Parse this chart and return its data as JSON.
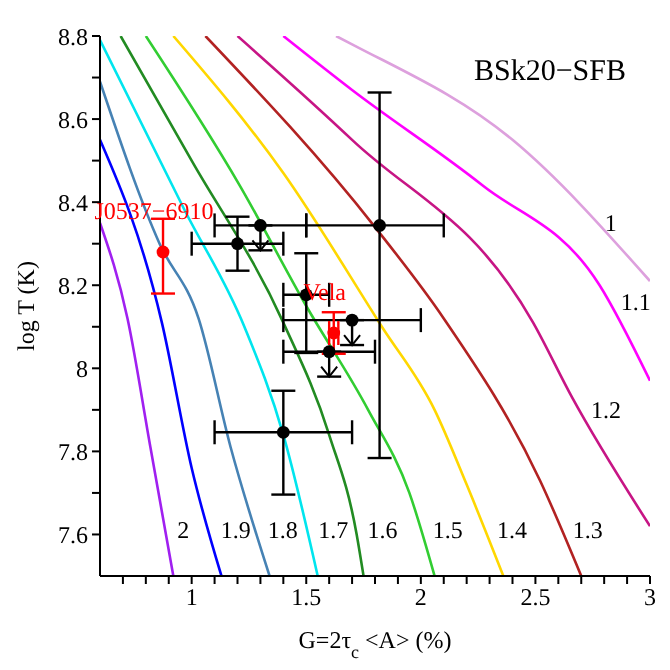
{
  "chart_data": {
    "type": "line",
    "title": "BSk20−SFB",
    "xlabel": "G=2τ$_{c}$<A> (%)",
    "ylabel": "log T (K)",
    "xlim": [
      0.6,
      3
    ],
    "ylim": [
      7.5,
      8.8
    ],
    "xticks": [
      {
        "value": 0.7,
        "label": null
      },
      {
        "value": 0.8,
        "label": null
      },
      {
        "value": 0.9,
        "label": null
      },
      1,
      {
        "value": 1.1,
        "label": null
      },
      {
        "value": 1.2,
        "label": null
      },
      {
        "value": 1.3,
        "label": null
      },
      {
        "value": 1.4,
        "label": null
      },
      1.5,
      {
        "value": 1.6,
        "label": null
      },
      {
        "value": 1.7,
        "label": null
      },
      {
        "value": 1.8,
        "label": null
      },
      {
        "value": 1.9,
        "label": null
      },
      2,
      {
        "value": 2.1,
        "label": null
      },
      {
        "value": 2.2,
        "label": null
      },
      {
        "value": 2.3,
        "label": null
      },
      {
        "value": 2.4,
        "label": null
      },
      2.5,
      {
        "value": 2.6,
        "label": null
      },
      {
        "value": 2.7,
        "label": null
      },
      {
        "value": 2.8,
        "label": null
      },
      {
        "value": 2.9,
        "label": null
      },
      3
    ],
    "yticks": [
      7.6,
      {
        "value": 7.7,
        "label": null
      },
      7.8,
      {
        "value": 7.9,
        "label": null
      },
      8,
      {
        "value": 8.1,
        "label": null
      },
      8.2,
      {
        "value": 8.3,
        "label": null
      },
      8.4,
      {
        "value": 8.5,
        "label": null
      },
      8.6,
      {
        "value": 8.7,
        "label": null
      },
      8.8
    ],
    "grid": false,
    "legend": false,
    "marker": "none",
    "line_style": "solid",
    "series": [
      {
        "color": "#a020f0",
        "x": [
          0.6,
          0.72,
          0.82,
          0.92
        ],
        "values": [
          8.35,
          8.12,
          7.81,
          7.5
        ]
      },
      {
        "color": "#0000ff",
        "x": [
          0.6,
          0.87,
          1.0,
          1.13
        ],
        "values": [
          8.55,
          8.11,
          7.76,
          7.5
        ]
      },
      {
        "color": "#4682b4",
        "x": [
          0.6,
          0.86,
          1.03,
          1.17,
          1.34
        ],
        "values": [
          8.69,
          8.3,
          8.12,
          7.81,
          7.5
        ]
      },
      {
        "color": "#00e5ee",
        "x": [
          0.6,
          0.97,
          1.23,
          1.4,
          1.55
        ],
        "values": [
          8.79,
          8.38,
          8.1,
          7.84,
          7.5
        ]
      },
      {
        "color": "#228b22",
        "x": [
          0.69,
          1.0,
          1.4,
          1.6,
          1.72,
          1.75
        ],
        "values": [
          8.8,
          8.5,
          8.11,
          7.84,
          7.6,
          7.5
        ]
      },
      {
        "color": "#32cd32",
        "x": [
          0.8,
          1.21,
          1.5,
          1.77,
          1.95,
          2.06
        ],
        "values": [
          8.8,
          8.44,
          8.15,
          7.9,
          7.7,
          7.5
        ]
      },
      {
        "color": "#ffd700",
        "x": [
          0.92,
          1.4,
          1.83,
          2.06,
          2.2,
          2.36
        ],
        "values": [
          8.8,
          8.47,
          8.1,
          7.9,
          7.72,
          7.5
        ]
      },
      {
        "color": "#b22222",
        "x": [
          1.06,
          1.8,
          2.1,
          2.52,
          2.7
        ],
        "values": [
          8.8,
          8.34,
          8.12,
          7.73,
          7.5
        ]
      },
      {
        "color": "#c71585",
        "x": [
          1.2,
          1.7,
          2.49,
          2.66,
          3.0
        ],
        "values": [
          8.8,
          8.55,
          8.11,
          7.93,
          7.62
        ]
      },
      {
        "color": "#ff00ff",
        "x": [
          1.4,
          1.7,
          2.27,
          2.78,
          3.0
        ],
        "values": [
          8.8,
          8.67,
          8.44,
          8.2,
          7.97
        ]
      },
      {
        "color": "#dda0dd",
        "x": [
          1.63,
          1.7,
          2.4,
          3.0
        ],
        "values": [
          8.8,
          8.78,
          8.55,
          8.21
        ]
      },
      {
        "type": "scatter",
        "color": "#000000",
        "marker": "circle",
        "x": [
          1.3,
          1.2,
          1.82,
          1.5,
          1.7,
          1.6,
          1.4
        ],
        "values": [
          8.344,
          8.3,
          8.344,
          8.177,
          8.116,
          8.04,
          7.846
        ],
        "errors": [
          [
            8.284,
            8.344
          ],
          0.065,
          [
            7.784,
            8.664
          ],
          [
            8.037,
            8.277
          ],
          [
            8.056,
            8.116
          ],
          [
            7.98,
            8.04
          ],
          [
            7.696,
            7.946
          ]
        ],
        "xerrors": [
          0.2,
          0.2,
          [
            1.5,
            2.1
          ],
          0.1,
          0.3,
          0.2,
          0.3
        ]
      },
      {
        "type": "scatter",
        "name": "J0537−6910",
        "color": "#ff0000",
        "marker": "circle",
        "x": [
          0.875
        ],
        "values": [
          8.28
        ],
        "errors": [
          [
            8.18,
            8.36
          ]
        ]
      },
      {
        "type": "scatter",
        "name": "Vela",
        "color": "#ff0000",
        "marker": "circle",
        "x": [
          1.62
        ],
        "values": [
          8.085
        ],
        "errors": [
          0.05
        ],
        "xerrors": [
          0.02
        ]
      }
    ],
    "annotations": [
      {
        "text": "2",
        "x": 0.885,
        "y": 7.61
      },
      {
        "text": "1.9",
        "x": 1.075,
        "y": 7.61
      },
      {
        "text": "1.8",
        "x": 1.28,
        "y": 7.61
      },
      {
        "text": "1.7",
        "x": 1.5,
        "y": 7.61
      },
      {
        "text": "1.6",
        "x": 1.715,
        "y": 7.61
      },
      {
        "text": "1.5",
        "x": 2.0,
        "y": 7.61
      },
      {
        "text": "1.4",
        "x": 2.28,
        "y": 7.61
      },
      {
        "text": "1.3",
        "x": 2.61,
        "y": 7.61
      },
      {
        "text": "1.2",
        "x": 2.69,
        "y": 7.9
      },
      {
        "text": "1.1",
        "x": 2.82,
        "y": 8.16
      },
      {
        "text": "1",
        "x": 2.75,
        "y": 8.35
      }
    ]
  }
}
